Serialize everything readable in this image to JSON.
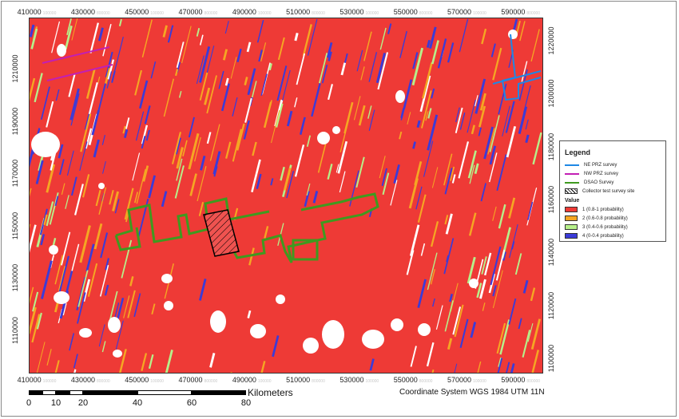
{
  "x_ticks": [
    {
      "label": "410000",
      "ghost": "100000"
    },
    {
      "label": "430000",
      "ghost": "800000"
    },
    {
      "label": "450000",
      "ghost": "100000"
    },
    {
      "label": "470000",
      "ghost": "800000"
    },
    {
      "label": "490000",
      "ghost": "100000"
    },
    {
      "label": "510000",
      "ghost": "800000"
    },
    {
      "label": "530000",
      "ghost": "100000"
    },
    {
      "label": "550000",
      "ghost": "800000"
    },
    {
      "label": "570000",
      "ghost": "100000"
    },
    {
      "label": "590000",
      "ghost": "800000"
    }
  ],
  "y_ticks_left": [
    "1210000",
    "1190000",
    "1170000",
    "1150000",
    "1130000",
    "1110000"
  ],
  "y_ticks_right": [
    "1220000",
    "1200000",
    "1180000",
    "1160000",
    "1140000",
    "1120000",
    "1100000"
  ],
  "legend": {
    "title": "Legend",
    "items": [
      {
        "label": "NE PRZ survey",
        "color": "#1e88e5"
      },
      {
        "label": "NW PRZ survey",
        "color": "#c21fb4"
      },
      {
        "label": "DSAO Survey",
        "color": "#3f9a1f"
      },
      {
        "label": "Collector test survey site",
        "color": "#000000"
      }
    ],
    "value_title": "Value",
    "values": [
      {
        "label": "1 (0.8-1 probability)",
        "color": "#ee3a36"
      },
      {
        "label": "2 (0.6-0.8 probability)",
        "color": "#f5a623"
      },
      {
        "label": "3 (0.4-0.6 probability)",
        "color": "#b7f08a"
      },
      {
        "label": "4 (0-0.4 probability)",
        "color": "#3b3bd8"
      }
    ]
  },
  "scale": {
    "labels": [
      "0",
      "10",
      "20",
      "40",
      "60",
      "80"
    ],
    "unit": "Kilometers"
  },
  "coordinate_system": "Coordinate System WGS 1984 UTM 11N"
}
